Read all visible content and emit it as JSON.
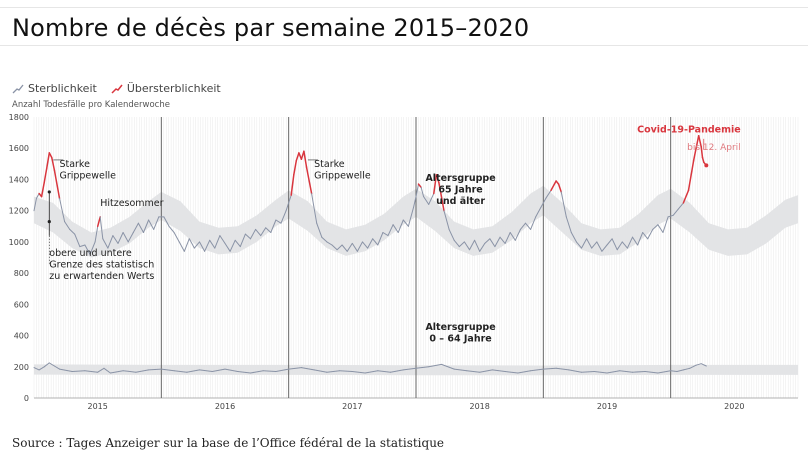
{
  "title": "Nombre de décès par semaine 2015–2020",
  "legend": {
    "mortality": "Sterblichkeit",
    "excess": "Übersterblichkeit"
  },
  "colors": {
    "mortality": "#8a93a6",
    "excess": "#d9363e",
    "band": "#e3e4e6",
    "grid": "#e9e9e9"
  },
  "source": "Source : Tages Anzeiger sur la base de l’Office fédéral de la statistique",
  "chart_data": {
    "type": "line",
    "ylabel": "Anzahl Todesfälle pro Kalenderwoche",
    "ylim": [
      0,
      1800
    ],
    "yticks": [
      0,
      200,
      400,
      600,
      800,
      1000,
      1200,
      1400,
      1600,
      1800
    ],
    "xlim": [
      2015.0,
      2021.0
    ],
    "x_tick_labels": [
      "2015",
      "2016",
      "2017",
      "2018",
      "2019",
      "2020"
    ],
    "x_tick_positions": [
      2015.5,
      2016.5,
      2017.5,
      2018.5,
      2019.5,
      2020.5
    ],
    "season_dividers": [
      2016.0,
      2017.0,
      2018.0,
      2019.0,
      2020.0
    ],
    "grid": "vertical weekly",
    "annotations": [
      {
        "text": [
          "Starke",
          "Grippewelle"
        ],
        "x": 2015.2,
        "y": 1480,
        "color": "dark"
      },
      {
        "text": [
          "Hitzesommer"
        ],
        "x": 2015.52,
        "y": 1230,
        "color": "dark"
      },
      {
        "text": [
          "obere und untere",
          "Grenze des statistisch",
          "zu erwartenden Werts"
        ],
        "x": 2015.12,
        "y": 910,
        "color": "dark"
      },
      {
        "text": [
          "Starke",
          "Grippewelle"
        ],
        "x": 2017.2,
        "y": 1480,
        "color": "dark"
      },
      {
        "text": [
          "Altersgruppe",
          "65 Jahre",
          "und älter"
        ],
        "x": 2018.35,
        "y": 1390,
        "color": "bold"
      },
      {
        "text": [
          "Altersgruppe",
          "0 – 64 Jahre"
        ],
        "x": 2018.35,
        "y": 435,
        "color": "bold"
      },
      {
        "text": [
          "Covid-19-Pandemie"
        ],
        "x": 2020.55,
        "y": 1700,
        "color": "red-bold"
      },
      {
        "text": [
          "bis 12. April"
        ],
        "x": 2020.55,
        "y": 1590,
        "color": "red"
      }
    ],
    "series": [
      {
        "name": "Altersgruppe 65 Jahre und älter",
        "x": [
          2015.0,
          2015.02,
          2015.04,
          2015.06,
          2015.08,
          2015.1,
          2015.12,
          2015.14,
          2015.16,
          2015.2,
          2015.24,
          2015.28,
          2015.32,
          2015.36,
          2015.4,
          2015.44,
          2015.48,
          2015.5,
          2015.52,
          2015.54,
          2015.58,
          2015.62,
          2015.66,
          2015.7,
          2015.74,
          2015.78,
          2015.82,
          2015.86,
          2015.9,
          2015.94,
          2015.98,
          2016.02,
          2016.06,
          2016.1,
          2016.14,
          2016.18,
          2016.22,
          2016.26,
          2016.3,
          2016.34,
          2016.38,
          2016.42,
          2016.46,
          2016.5,
          2016.54,
          2016.58,
          2016.62,
          2016.66,
          2016.7,
          2016.74,
          2016.78,
          2016.82,
          2016.86,
          2016.9,
          2016.94,
          2016.98,
          2017.02,
          2017.04,
          2017.06,
          2017.08,
          2017.1,
          2017.12,
          2017.14,
          2017.18,
          2017.22,
          2017.26,
          2017.3,
          2017.34,
          2017.38,
          2017.42,
          2017.46,
          2017.5,
          2017.54,
          2017.58,
          2017.62,
          2017.66,
          2017.7,
          2017.74,
          2017.78,
          2017.82,
          2017.86,
          2017.9,
          2017.94,
          2017.98,
          2018.0,
          2018.02,
          2018.04,
          2018.06,
          2018.1,
          2018.14,
          2018.16,
          2018.18,
          2018.22,
          2018.26,
          2018.3,
          2018.34,
          2018.38,
          2018.42,
          2018.46,
          2018.5,
          2018.54,
          2018.58,
          2018.62,
          2018.66,
          2018.7,
          2018.74,
          2018.78,
          2018.82,
          2018.86,
          2018.9,
          2018.94,
          2018.98,
          2019.02,
          2019.06,
          2019.1,
          2019.12,
          2019.14,
          2019.18,
          2019.22,
          2019.26,
          2019.3,
          2019.34,
          2019.38,
          2019.42,
          2019.46,
          2019.5,
          2019.54,
          2019.58,
          2019.62,
          2019.66,
          2019.7,
          2019.74,
          2019.78,
          2019.82,
          2019.86,
          2019.9,
          2019.94,
          2019.98,
          2020.02,
          2020.06,
          2020.1,
          2020.14,
          2020.18,
          2020.2,
          2020.22,
          2020.24,
          2020.25,
          2020.26,
          2020.27,
          2020.28
        ],
        "values": [
          1200,
          1280,
          1310,
          1290,
          1380,
          1470,
          1570,
          1540,
          1460,
          1280,
          1130,
          1080,
          1050,
          970,
          980,
          920,
          1000,
          1100,
          1160,
          1020,
          960,
          1040,
          990,
          1060,
          1000,
          1060,
          1120,
          1060,
          1140,
          1080,
          1160,
          1160,
          1100,
          1060,
          1000,
          940,
          1020,
          960,
          1000,
          940,
          1010,
          960,
          1040,
          990,
          940,
          1010,
          970,
          1050,
          1020,
          1080,
          1040,
          1090,
          1060,
          1140,
          1120,
          1200,
          1300,
          1430,
          1520,
          1570,
          1530,
          1580,
          1480,
          1310,
          1120,
          1030,
          1000,
          980,
          950,
          980,
          940,
          990,
          940,
          1000,
          960,
          1020,
          980,
          1060,
          1040,
          1110,
          1060,
          1140,
          1100,
          1220,
          1290,
          1370,
          1350,
          1290,
          1240,
          1310,
          1430,
          1380,
          1200,
          1080,
          1010,
          970,
          1000,
          950,
          1010,
          940,
          990,
          1020,
          970,
          1030,
          990,
          1060,
          1010,
          1080,
          1120,
          1080,
          1160,
          1220,
          1280,
          1330,
          1390,
          1370,
          1320,
          1160,
          1060,
          1000,
          960,
          1020,
          960,
          1000,
          940,
          980,
          1020,
          950,
          1000,
          960,
          1030,
          980,
          1060,
          1020,
          1080,
          1110,
          1060,
          1160,
          1170,
          1210,
          1250,
          1330,
          1520,
          1600,
          1680,
          1610,
          1540,
          1510,
          1500,
          1490
        ]
      },
      {
        "name": "Altersgruppe 0 – 64 Jahre",
        "x": [
          2015.0,
          2015.04,
          2015.08,
          2015.12,
          2015.16,
          2015.2,
          2015.3,
          2015.4,
          2015.5,
          2015.55,
          2015.6,
          2015.7,
          2015.8,
          2015.9,
          2016.0,
          2016.1,
          2016.2,
          2016.3,
          2016.4,
          2016.5,
          2016.6,
          2016.7,
          2016.8,
          2016.9,
          2017.0,
          2017.1,
          2017.2,
          2017.3,
          2017.4,
          2017.5,
          2017.6,
          2017.7,
          2017.8,
          2017.9,
          2018.0,
          2018.1,
          2018.2,
          2018.3,
          2018.4,
          2018.5,
          2018.6,
          2018.7,
          2018.8,
          2018.9,
          2019.0,
          2019.1,
          2019.2,
          2019.3,
          2019.4,
          2019.5,
          2019.6,
          2019.7,
          2019.8,
          2019.9,
          2020.0,
          2020.05,
          2020.1,
          2020.15,
          2020.2,
          2020.24,
          2020.28
        ],
        "values": [
          195,
          180,
          200,
          225,
          205,
          185,
          170,
          175,
          165,
          190,
          160,
          175,
          165,
          180,
          185,
          175,
          165,
          180,
          170,
          185,
          170,
          160,
          175,
          170,
          185,
          195,
          180,
          165,
          175,
          170,
          160,
          175,
          165,
          180,
          190,
          200,
          215,
          185,
          175,
          165,
          180,
          170,
          160,
          175,
          185,
          190,
          180,
          165,
          170,
          160,
          175,
          165,
          170,
          160,
          175,
          170,
          180,
          190,
          210,
          220,
          205
        ]
      },
      {
        "name": "obere Grenze 65+",
        "x": [
          2015.0,
          2015.15,
          2015.3,
          2015.45,
          2015.6,
          2015.75,
          2015.9,
          2016.0,
          2016.15,
          2016.3,
          2016.45,
          2016.6,
          2016.75,
          2016.9,
          2017.0,
          2017.15,
          2017.3,
          2017.45,
          2017.6,
          2017.75,
          2017.9,
          2018.0,
          2018.15,
          2018.3,
          2018.45,
          2018.6,
          2018.75,
          2018.9,
          2019.0,
          2019.15,
          2019.3,
          2019.45,
          2019.6,
          2019.75,
          2019.9,
          2020.0,
          2020.15,
          2020.3,
          2020.45,
          2020.6,
          2020.75,
          2020.9,
          2021.0
        ],
        "values": [
          1290,
          1250,
          1130,
          1060,
          1090,
          1160,
          1260,
          1320,
          1260,
          1130,
          1090,
          1100,
          1170,
          1270,
          1330,
          1260,
          1130,
          1080,
          1110,
          1180,
          1290,
          1340,
          1260,
          1130,
          1080,
          1100,
          1190,
          1310,
          1360,
          1250,
          1120,
          1080,
          1090,
          1180,
          1300,
          1340,
          1250,
          1120,
          1080,
          1090,
          1170,
          1270,
          1300
        ]
      },
      {
        "name": "untere Grenze 65+",
        "x": [
          2015.0,
          2015.15,
          2015.3,
          2015.45,
          2015.6,
          2015.75,
          2015.9,
          2016.0,
          2016.15,
          2016.3,
          2016.45,
          2016.6,
          2016.75,
          2016.9,
          2017.0,
          2017.15,
          2017.3,
          2017.45,
          2017.6,
          2017.75,
          2017.9,
          2018.0,
          2018.15,
          2018.3,
          2018.45,
          2018.6,
          2018.75,
          2018.9,
          2019.0,
          2019.15,
          2019.3,
          2019.45,
          2019.6,
          2019.75,
          2019.9,
          2020.0,
          2020.15,
          2020.3,
          2020.45,
          2020.6,
          2020.75,
          2020.9,
          2021.0
        ],
        "values": [
          1120,
          1060,
          960,
          900,
          930,
          990,
          1090,
          1140,
          1070,
          960,
          920,
          930,
          1000,
          1100,
          1150,
          1070,
          960,
          910,
          940,
          1010,
          1110,
          1160,
          1070,
          960,
          910,
          930,
          1010,
          1120,
          1170,
          1060,
          950,
          910,
          920,
          1000,
          1110,
          1150,
          1060,
          950,
          910,
          920,
          990,
          1090,
          1120
        ]
      },
      {
        "name": "obere Grenze 0–64",
        "x": [
          2015.0,
          2016.0,
          2017.0,
          2018.0,
          2019.0,
          2020.0,
          2021.0
        ],
        "values": [
          215,
          212,
          212,
          210,
          208,
          212,
          212
        ]
      },
      {
        "name": "untere Grenze 0–64",
        "x": [
          2015.0,
          2016.0,
          2017.0,
          2018.0,
          2019.0,
          2020.0,
          2021.0
        ],
        "values": [
          150,
          148,
          148,
          146,
          146,
          148,
          148
        ]
      }
    ]
  }
}
